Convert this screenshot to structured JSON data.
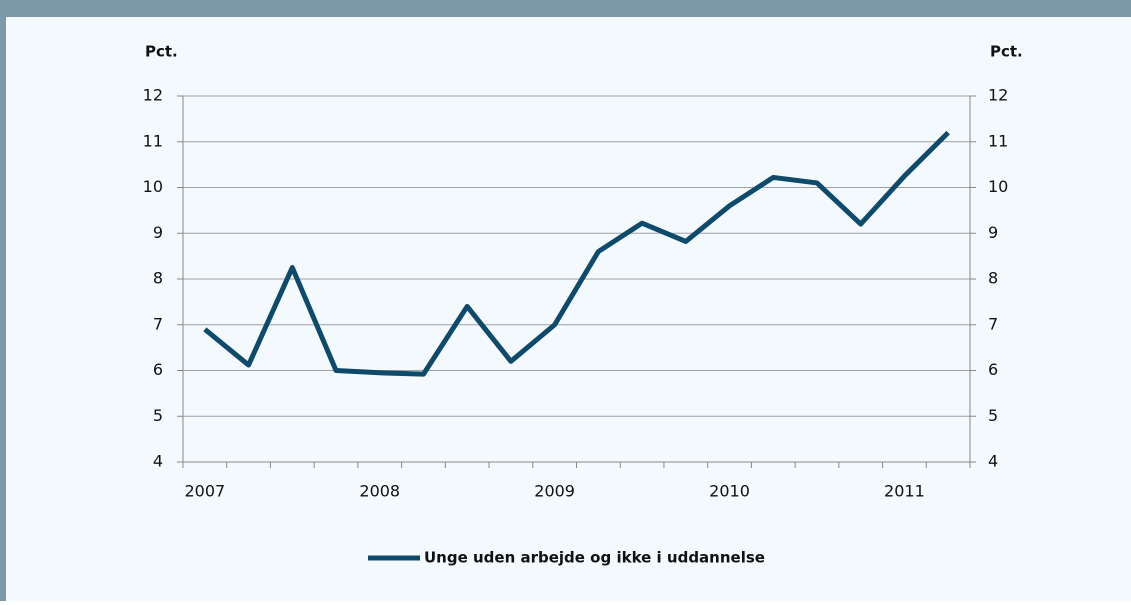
{
  "chart_data": {
    "type": "line",
    "y_label": "Pct.",
    "y2_label": "Pct.",
    "categories": [
      "2007",
      null,
      null,
      null,
      "2008",
      null,
      null,
      null,
      "2009",
      null,
      null,
      null,
      "2010",
      null,
      null,
      null,
      "2011",
      null
    ],
    "series": [
      {
        "name": "Unge uden arbejde og ikke i uddannelse",
        "color": "#0d4a6b",
        "values": [
          6.9,
          6.12,
          8.25,
          6.0,
          5.95,
          5.92,
          7.4,
          6.2,
          7.0,
          8.6,
          9.22,
          8.82,
          9.6,
          10.22,
          10.1,
          9.2,
          10.25,
          11.2
        ]
      }
    ],
    "ylim": [
      4,
      12
    ],
    "yticks": [
      4,
      5,
      6,
      7,
      8,
      9,
      10,
      11,
      12
    ],
    "y2lim": [
      4,
      12
    ],
    "y2ticks": [
      4,
      5,
      6,
      7,
      8,
      9,
      10,
      11,
      12
    ],
    "grid": true,
    "legend": "bottom"
  }
}
